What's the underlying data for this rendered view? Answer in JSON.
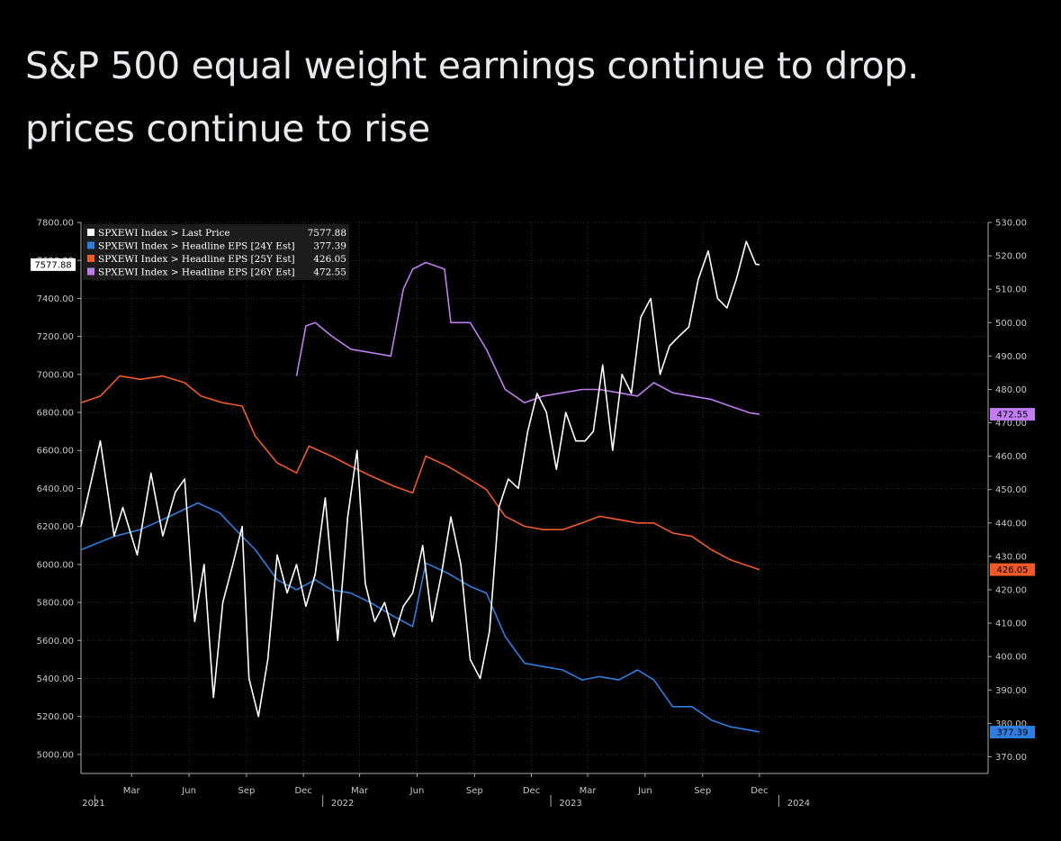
{
  "post": {
    "title_line1": "S&P 500 equal weight earnings continue to drop.",
    "title_line2": "prices continue to rise"
  },
  "chart_data": {
    "type": "line",
    "title": "",
    "xlabel": "",
    "ylabel": "",
    "x_ticks": [
      {
        "label": "Mar",
        "date": "2021-03-01"
      },
      {
        "label": "Jun",
        "date": "2021-06-01"
      },
      {
        "label": "Sep",
        "date": "2021-09-01"
      },
      {
        "label": "Dec",
        "date": "2021-12-01"
      },
      {
        "label": "Mar",
        "date": "2022-03-01"
      },
      {
        "label": "Jun",
        "date": "2022-06-01"
      },
      {
        "label": "Sep",
        "date": "2022-09-01"
      },
      {
        "label": "Dec",
        "date": "2022-12-01"
      },
      {
        "label": "Mar",
        "date": "2023-03-01"
      },
      {
        "label": "Jun",
        "date": "2023-06-01"
      },
      {
        "label": "Sep",
        "date": "2023-09-01"
      },
      {
        "label": "Dec",
        "date": "2023-12-01"
      }
    ],
    "year_labels": [
      {
        "label": "2021",
        "date": "2021-01-01"
      },
      {
        "label": "2022",
        "date": "2022-01-01"
      },
      {
        "label": "2023",
        "date": "2023-01-01"
      },
      {
        "label": "2024",
        "date": "2024-01-01"
      }
    ],
    "x_range": [
      "2020-12-10",
      "2024-12-01"
    ],
    "left_axis": {
      "ylim": [
        4900,
        7800
      ],
      "ticks": [
        "5000.00",
        "5200.00",
        "5400.00",
        "5600.00",
        "5800.00",
        "6000.00",
        "6200.00",
        "6400.00",
        "6600.00",
        "6800.00",
        "7000.00",
        "7200.00",
        "7400.00",
        "7600.00",
        "7800.00"
      ]
    },
    "right_axis": {
      "ylim": [
        365,
        530
      ],
      "ticks": [
        "370.00",
        "380.00",
        "390.00",
        "400.00",
        "410.00",
        "420.00",
        "430.00",
        "440.00",
        "450.00",
        "460.00",
        "470.00",
        "480.00",
        "490.00",
        "500.00",
        "510.00",
        "520.00",
        "530.00"
      ]
    },
    "legend_position": "top-left",
    "grid": true,
    "series": [
      {
        "name": "SPXEWI Index > Last Price",
        "last": "7577.88",
        "color": "#ffffff",
        "axis": "left",
        "x": [
          "2020-12-10",
          "2021-01-10",
          "2021-02-01",
          "2021-02-15",
          "2021-03-10",
          "2021-04-01",
          "2021-04-20",
          "2021-05-10",
          "2021-05-25",
          "2021-06-10",
          "2021-06-25",
          "2021-07-10",
          "2021-07-25",
          "2021-08-10",
          "2021-08-25",
          "2021-09-05",
          "2021-09-20",
          "2021-10-05",
          "2021-10-20",
          "2021-11-05",
          "2021-11-20",
          "2021-12-05",
          "2021-12-20",
          "2022-01-05",
          "2022-01-25",
          "2022-02-10",
          "2022-02-25",
          "2022-03-10",
          "2022-03-25",
          "2022-04-10",
          "2022-04-25",
          "2022-05-10",
          "2022-05-25",
          "2022-06-10",
          "2022-06-25",
          "2022-07-10",
          "2022-07-25",
          "2022-08-10",
          "2022-08-25",
          "2022-09-10",
          "2022-09-25",
          "2022-10-10",
          "2022-10-25",
          "2022-11-10",
          "2022-11-25",
          "2022-12-10",
          "2022-12-25",
          "2023-01-10",
          "2023-01-25",
          "2023-02-10",
          "2023-02-25",
          "2023-03-10",
          "2023-03-25",
          "2023-04-10",
          "2023-04-25",
          "2023-05-10",
          "2023-05-25",
          "2023-06-10",
          "2023-06-25",
          "2023-07-10",
          "2023-07-25",
          "2023-08-10",
          "2023-08-25",
          "2023-09-10",
          "2023-09-25",
          "2023-10-10",
          "2023-10-25",
          "2023-11-10",
          "2023-11-25",
          "2023-12-01"
        ],
        "values": [
          6200,
          6650,
          6150,
          6300,
          6050,
          6480,
          6150,
          6380,
          6450,
          5700,
          6000,
          5300,
          5800,
          6000,
          6200,
          5400,
          5200,
          5500,
          6050,
          5850,
          6000,
          5780,
          5950,
          6350,
          5600,
          6250,
          6600,
          5900,
          5700,
          5800,
          5620,
          5780,
          5850,
          6100,
          5700,
          5950,
          6250,
          6000,
          5500,
          5400,
          5650,
          6300,
          6450,
          6400,
          6700,
          6900,
          6800,
          6500,
          6800,
          6650,
          6650,
          6700,
          7050,
          6600,
          7000,
          6900,
          7300,
          7400,
          7000,
          7150,
          7200,
          7250,
          7500,
          7650,
          7400,
          7350,
          7500,
          7700,
          7580,
          7577.88
        ]
      },
      {
        "name": "SPXEWI Index > Headline EPS [24Y Est]",
        "last": "377.39",
        "color": "#2f7de1",
        "axis": "right",
        "x": [
          "2020-12-10",
          "2021-02-01",
          "2021-03-15",
          "2021-05-01",
          "2021-06-15",
          "2021-07-20",
          "2021-08-25",
          "2021-09-15",
          "2021-10-20",
          "2021-11-20",
          "2021-12-20",
          "2022-01-15",
          "2022-02-15",
          "2022-03-20",
          "2022-04-25",
          "2022-05-25",
          "2022-06-15",
          "2022-07-20",
          "2022-08-25",
          "2022-09-20",
          "2022-10-20",
          "2022-11-20",
          "2022-12-20",
          "2023-01-20",
          "2023-02-20",
          "2023-03-20",
          "2023-04-20",
          "2023-05-20",
          "2023-06-15",
          "2023-07-15",
          "2023-08-15",
          "2023-09-15",
          "2023-10-15",
          "2023-11-15",
          "2023-12-01"
        ],
        "values": [
          432,
          436,
          438,
          442,
          446,
          443,
          436,
          432,
          423,
          420,
          423,
          420,
          419,
          416,
          412,
          409,
          428,
          425,
          421,
          419,
          406,
          398,
          397,
          396,
          393,
          394,
          393,
          396,
          393,
          385,
          385,
          381,
          379,
          378,
          377.39
        ]
      },
      {
        "name": "SPXEWI Index > Headline EPS [25Y Est]",
        "last": "426.05",
        "color": "#f05a28",
        "axis": "right",
        "x": [
          "2020-12-10",
          "2021-01-10",
          "2021-02-10",
          "2021-03-15",
          "2021-04-20",
          "2021-05-25",
          "2021-06-20",
          "2021-07-25",
          "2021-08-25",
          "2021-09-15",
          "2021-10-20",
          "2021-11-20",
          "2021-12-10",
          "2022-01-15",
          "2022-02-15",
          "2022-03-20",
          "2022-04-25",
          "2022-05-25",
          "2022-06-15",
          "2022-07-20",
          "2022-08-25",
          "2022-09-20",
          "2022-10-20",
          "2022-11-20",
          "2022-12-20",
          "2023-01-20",
          "2023-02-20",
          "2023-03-20",
          "2023-04-20",
          "2023-05-20",
          "2023-06-15",
          "2023-07-15",
          "2023-08-15",
          "2023-09-15",
          "2023-10-15",
          "2023-11-15",
          "2023-12-01"
        ],
        "values": [
          476,
          478,
          484,
          483,
          484,
          482,
          478,
          476,
          475,
          466,
          458,
          455,
          463,
          460,
          457,
          454,
          451,
          449,
          460,
          457,
          453,
          450,
          442,
          439,
          438,
          438,
          440,
          442,
          441,
          440,
          440,
          437,
          436,
          432,
          429,
          427,
          426.05
        ]
      },
      {
        "name": "SPXEWI Index > Headline EPS [26Y Est]",
        "last": "472.55",
        "color": "#c07cf0",
        "axis": "right",
        "x": [
          "2021-11-20",
          "2021-12-05",
          "2021-12-20",
          "2022-01-15",
          "2022-02-15",
          "2022-03-20",
          "2022-04-20",
          "2022-05-10",
          "2022-05-25",
          "2022-06-15",
          "2022-07-15",
          "2022-07-25",
          "2022-08-25",
          "2022-09-20",
          "2022-10-20",
          "2022-11-20",
          "2022-12-20",
          "2023-01-20",
          "2023-02-20",
          "2023-03-20",
          "2023-04-20",
          "2023-05-20",
          "2023-06-15",
          "2023-07-15",
          "2023-08-15",
          "2023-09-15",
          "2023-10-15",
          "2023-11-15",
          "2023-12-01"
        ],
        "values": [
          484,
          499,
          500,
          496,
          492,
          491,
          490,
          510,
          516,
          518,
          516,
          500,
          500,
          492,
          480,
          476,
          478,
          479,
          480,
          480,
          479,
          478,
          482,
          479,
          478,
          477,
          475,
          473,
          472.55
        ]
      }
    ]
  }
}
